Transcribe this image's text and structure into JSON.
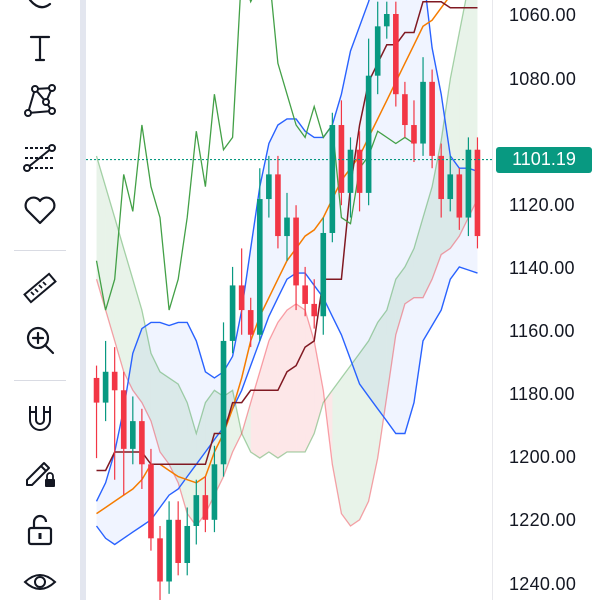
{
  "toolbar": {
    "tools": [
      "brush-tool",
      "text-tool",
      "pattern-tool",
      "forecast-tool",
      "favorite-tool",
      "measure-tool",
      "zoom-tool",
      "magnet-tool",
      "lock-drawing-tool",
      "lock-tool",
      "visibility-tool"
    ]
  },
  "price_axis": {
    "ticks": [
      "1060.00",
      "1080.00",
      "1120.00",
      "1140.00",
      "1160.00",
      "1180.00",
      "1200.00",
      "1220.00",
      "1240.00"
    ],
    "current_price": "1101.19",
    "current_price_color": "#089981"
  },
  "colors": {
    "up": "#089981",
    "down": "#f23645",
    "bollinger": "#2962ff",
    "ema": "#f57c00",
    "kijun": "#801922",
    "lagging": "#43a047"
  },
  "chart_data": {
    "type": "candlestick",
    "y_axis": {
      "min": 1054,
      "max": 1244,
      "inverted": true
    },
    "candles": [
      [
        1172,
        1180,
        1198,
        1168
      ],
      [
        1180,
        1170,
        1186,
        1160
      ],
      [
        1170,
        1176,
        1205,
        1162
      ],
      [
        1176,
        1195,
        1210,
        1170
      ],
      [
        1195,
        1186,
        1200,
        1178
      ],
      [
        1186,
        1200,
        1208,
        1182
      ],
      [
        1200,
        1224,
        1228,
        1195
      ],
      [
        1224,
        1238,
        1244,
        1220
      ],
      [
        1238,
        1218,
        1242,
        1212
      ],
      [
        1218,
        1232,
        1236,
        1212
      ],
      [
        1232,
        1220,
        1236,
        1214
      ],
      [
        1220,
        1210,
        1226,
        1205
      ],
      [
        1210,
        1218,
        1222,
        1204
      ],
      [
        1218,
        1200,
        1222,
        1194
      ],
      [
        1200,
        1160,
        1204,
        1154
      ],
      [
        1160,
        1142,
        1164,
        1136
      ],
      [
        1142,
        1150,
        1158,
        1130
      ],
      [
        1150,
        1158,
        1162,
        1146
      ],
      [
        1158,
        1114,
        1160,
        1104
      ],
      [
        1114,
        1106,
        1120,
        1100
      ],
      [
        1106,
        1126,
        1130,
        1100
      ],
      [
        1126,
        1120,
        1134,
        1112
      ],
      [
        1120,
        1142,
        1150,
        1116
      ],
      [
        1142,
        1148,
        1152,
        1136
      ],
      [
        1148,
        1152,
        1156,
        1140
      ],
      [
        1152,
        1125,
        1158,
        1120
      ],
      [
        1125,
        1090,
        1128,
        1086
      ],
      [
        1090,
        1112,
        1116,
        1082
      ],
      [
        1112,
        1098,
        1120,
        1094
      ],
      [
        1098,
        1112,
        1118,
        1092
      ],
      [
        1112,
        1074,
        1116,
        1062
      ],
      [
        1074,
        1058,
        1080,
        1050
      ],
      [
        1058,
        1054,
        1062,
        1050
      ],
      [
        1054,
        1080,
        1084,
        1050
      ],
      [
        1080,
        1090,
        1094,
        1076
      ],
      [
        1090,
        1096,
        1102,
        1082
      ],
      [
        1096,
        1076,
        1100,
        1068
      ],
      [
        1076,
        1100,
        1104,
        1072
      ],
      [
        1100,
        1114,
        1120,
        1096
      ],
      [
        1114,
        1106,
        1118,
        1100
      ],
      [
        1106,
        1120,
        1124,
        1104
      ],
      [
        1120,
        1098,
        1126,
        1094
      ],
      [
        1098,
        1126,
        1130,
        1094
      ]
    ],
    "bollinger_upper": [
      1212,
      1206,
      1196,
      1182,
      1164,
      1156,
      1154,
      1154,
      1155,
      1154,
      1154,
      1160,
      1170,
      1172,
      1170,
      1165,
      1150,
      1130,
      1110,
      1096,
      1090,
      1088,
      1088,
      1092,
      1094,
      1094,
      1090,
      1080,
      1066,
      1058,
      1050,
      1040,
      1030,
      1022,
      1010,
      1000,
      1040,
      1065,
      1080,
      1100,
      1104,
      1104,
      1105
    ],
    "bollinger_lower": [
      1220,
      1224,
      1226,
      1224,
      1222,
      1220,
      1218,
      1214,
      1210,
      1208,
      1204,
      1200,
      1196,
      1192,
      1188,
      1182,
      1176,
      1168,
      1160,
      1152,
      1146,
      1140,
      1138,
      1138,
      1142,
      1146,
      1152,
      1158,
      1166,
      1174,
      1178,
      1182,
      1186,
      1190,
      1190,
      1180,
      1160,
      1155,
      1150,
      1140,
      1136,
      1137,
      1138
    ],
    "ema": [
      1216,
      1214,
      1212,
      1210,
      1208,
      1205,
      1200,
      1200,
      1202,
      1204,
      1205,
      1206,
      1204,
      1196,
      1190,
      1182,
      1172,
      1160,
      1152,
      1146,
      1140,
      1134,
      1130,
      1126,
      1124,
      1120,
      1114,
      1108,
      1104,
      1100,
      1094,
      1088,
      1082,
      1076,
      1070,
      1064,
      1058,
      1056,
      1052,
      1048,
      1045,
      1045,
      1046
    ],
    "kijun": [
      1202,
      1202,
      1196,
      1196,
      1196,
      1196,
      1200,
      1200,
      1200,
      1200,
      1200,
      1200,
      1200,
      1190,
      1190,
      1180,
      1180,
      1176,
      1176,
      1176,
      1176,
      1170,
      1168,
      1162,
      1160,
      1140,
      1140,
      1140,
      1110,
      1090,
      1076,
      1070,
      1064,
      1064,
      1060,
      1060,
      1050,
      1050,
      1050,
      1052,
      1052,
      1052,
      1052
    ],
    "lagging_span": [
      1134,
      1150,
      1140,
      1106,
      1118,
      1090,
      1110,
      1120,
      1150,
      1140,
      1120,
      1092,
      1110,
      1080,
      1098,
      1094,
      1040,
      1050,
      1044,
      1040,
      1070,
      1080,
      1090,
      1094,
      1084,
      1094,
      1090,
      1120,
      1122,
      1104,
      1100,
      1092,
      1094,
      1096,
      1094,
      1096
    ],
    "cloud_upper": [
      1100,
      1110,
      1120,
      1130,
      1140,
      1150,
      1164,
      1170,
      1172,
      1174,
      1180,
      1190,
      1180,
      1176,
      1178,
      1176,
      1190,
      1196,
      1198,
      1196,
      1198,
      1196,
      1196,
      1196,
      1190,
      1180,
      1176,
      1172,
      1168,
      1164,
      1160,
      1154,
      1150,
      1140,
      1136,
      1130,
      1120,
      1110,
      1095,
      1075,
      1060,
      1045,
      1035
    ],
    "cloud_lower": [
      1140,
      1150,
      1160,
      1170,
      1176,
      1180,
      1186,
      1196,
      1200,
      1206,
      1216,
      1220,
      1216,
      1210,
      1204,
      1196,
      1190,
      1180,
      1170,
      1160,
      1154,
      1150,
      1148,
      1150,
      1160,
      1176,
      1200,
      1216,
      1220,
      1218,
      1212,
      1198,
      1178,
      1158,
      1148,
      1146,
      1146,
      1140,
      1132,
      1130,
      1126,
      1120,
      1114
    ],
    "current_price": 1101.19
  }
}
